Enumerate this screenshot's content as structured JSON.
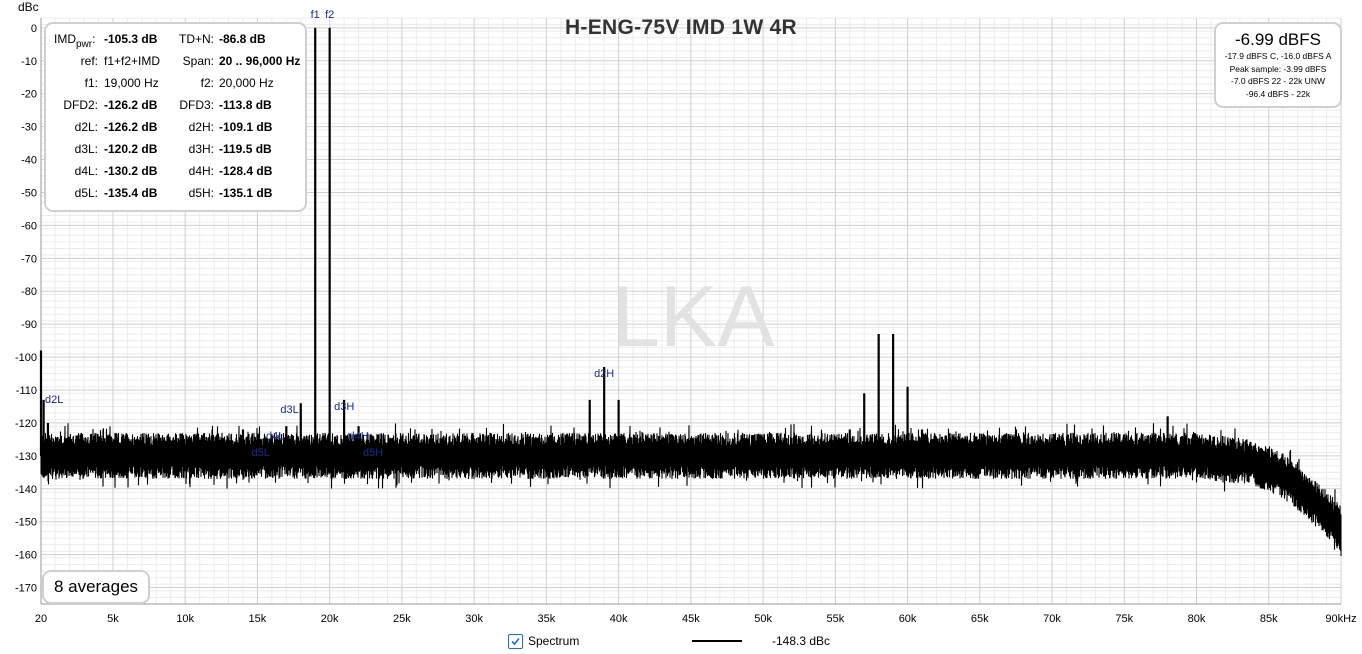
{
  "chart": {
    "title": "H-ENG-75V IMD 1W 4R",
    "y_unit_label": "dBc",
    "watermark": "LKA",
    "averages_label": "8 averages"
  },
  "stats": [
    {
      "k1": "IMD",
      "k1sub": "pwr",
      "v1": "-105.3 dB",
      "k2": "TD+N:",
      "v2": "-86.8 dB",
      "bold": true
    },
    {
      "k1": "ref:",
      "v1": "f1+f2+IMD",
      "k2": "Span:",
      "v2": "20 .. 96,000 Hz",
      "bold": false,
      "bold2": true
    },
    {
      "k1": "f1:",
      "v1": "19,000 Hz",
      "k2": "f2:",
      "v2": "20,000 Hz",
      "bold": false,
      "bold2": false
    },
    {
      "k1": "DFD2:",
      "v1": "-126.2 dB",
      "k2": "DFD3:",
      "v2": "-113.8 dB",
      "bold": true
    },
    {
      "k1": "d2L:",
      "v1": "-126.2 dB",
      "k2": "d2H:",
      "v2": "-109.1 dB",
      "bold": true
    },
    {
      "k1": "d3L:",
      "v1": "-120.2 dB",
      "k2": "d3H:",
      "v2": "-119.5 dB",
      "bold": true
    },
    {
      "k1": "d4L:",
      "v1": "-130.2 dB",
      "k2": "d4H:",
      "v2": "-128.4 dB",
      "bold": true
    },
    {
      "k1": "d5L:",
      "v1": "-135.4 dB",
      "k2": "d5H:",
      "v2": "-135.1 dB",
      "bold": true
    }
  ],
  "level_box": {
    "main": "-6.99 dBFS",
    "lines": [
      "-17.9 dBFS C, -16.0 dBFS A",
      "Peak sample: -3.99 dBFS",
      "-7.0 dBFS 22 - 22k UNW",
      "-96.4 dBFS - 22k"
    ]
  },
  "legend": {
    "checkbox_label": "Spectrum",
    "checked": true,
    "value": "-148.3 dBc",
    "line_color": "#000000"
  },
  "chart_data": {
    "type": "line",
    "title": "H-ENG-75V IMD 1W 4R",
    "ylabel": "dBc",
    "xlabel": "",
    "xlim": [
      20,
      90000
    ],
    "ylim": [
      -175,
      3
    ],
    "x_ticks": [
      {
        "v": 20,
        "label": "20"
      },
      {
        "v": 5000,
        "label": "5k"
      },
      {
        "v": 10000,
        "label": "10k"
      },
      {
        "v": 15000,
        "label": "15k"
      },
      {
        "v": 20000,
        "label": "20k"
      },
      {
        "v": 25000,
        "label": "25k"
      },
      {
        "v": 30000,
        "label": "30k"
      },
      {
        "v": 35000,
        "label": "35k"
      },
      {
        "v": 40000,
        "label": "40k"
      },
      {
        "v": 45000,
        "label": "45k"
      },
      {
        "v": 50000,
        "label": "50k"
      },
      {
        "v": 55000,
        "label": "55k"
      },
      {
        "v": 60000,
        "label": "60k"
      },
      {
        "v": 65000,
        "label": "65k"
      },
      {
        "v": 70000,
        "label": "70k"
      },
      {
        "v": 75000,
        "label": "75k"
      },
      {
        "v": 80000,
        "label": "80k"
      },
      {
        "v": 85000,
        "label": "85k"
      },
      {
        "v": 90000,
        "label": "90kHz"
      }
    ],
    "y_ticks": [
      0,
      -10,
      -20,
      -30,
      -40,
      -50,
      -60,
      -70,
      -80,
      -90,
      -100,
      -110,
      -120,
      -130,
      -140,
      -150,
      -160,
      -170
    ],
    "grid": true,
    "series": [
      {
        "name": "Spectrum",
        "color": "#000000",
        "noise_floor": [
          [
            20,
            -130
          ],
          [
            10000,
            -130
          ],
          [
            40000,
            -130
          ],
          [
            80000,
            -130
          ],
          [
            84000,
            -132
          ],
          [
            86000,
            -136
          ],
          [
            88000,
            -143
          ],
          [
            90000,
            -152
          ]
        ],
        "peaks": [
          {
            "x": 19000,
            "y": 0
          },
          {
            "x": 20000,
            "y": 0
          },
          {
            "x": 18000,
            "y": -114
          },
          {
            "x": 17000,
            "y": -121
          },
          {
            "x": 16000,
            "y": -124
          },
          {
            "x": 14000,
            "y": -122
          },
          {
            "x": 21000,
            "y": -113
          },
          {
            "x": 22000,
            "y": -121
          },
          {
            "x": 23000,
            "y": -124
          },
          {
            "x": 38000,
            "y": -113
          },
          {
            "x": 39000,
            "y": -103
          },
          {
            "x": 40000,
            "y": -113
          },
          {
            "x": 57000,
            "y": -111
          },
          {
            "x": 58000,
            "y": -93
          },
          {
            "x": 59000,
            "y": -93
          },
          {
            "x": 60000,
            "y": -109
          },
          {
            "x": 56000,
            "y": -122
          },
          {
            "x": 61000,
            "y": -122
          },
          {
            "x": 78000,
            "y": -118
          },
          {
            "x": 79000,
            "y": -124
          },
          {
            "x": 20,
            "y": -98
          },
          {
            "x": 200,
            "y": -113
          },
          {
            "x": 500,
            "y": -120
          }
        ]
      }
    ],
    "annotations": [
      {
        "x": 19000,
        "y": 3,
        "text": "f1"
      },
      {
        "x": 20000,
        "y": 3,
        "text": "f2"
      },
      {
        "x": 20,
        "y": -114,
        "text": "d2L"
      },
      {
        "x": 18000,
        "y": -117,
        "text": "d3L"
      },
      {
        "x": 17000,
        "y": -125,
        "text": "d4L"
      },
      {
        "x": 16000,
        "y": -130,
        "text": "d5L"
      },
      {
        "x": 21000,
        "y": -116,
        "text": "d3H"
      },
      {
        "x": 22000,
        "y": -125,
        "text": "d4H"
      },
      {
        "x": 23000,
        "y": -130,
        "text": "d5H"
      },
      {
        "x": 39000,
        "y": -106,
        "text": "d2H"
      }
    ]
  }
}
